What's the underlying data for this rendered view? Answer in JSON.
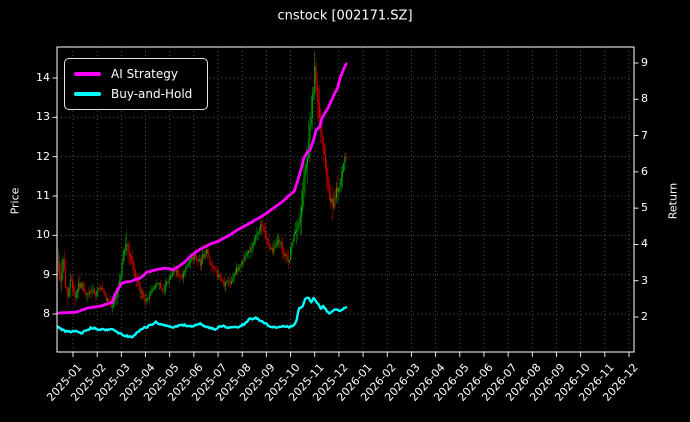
{
  "title": "cnstock [002171.SZ]",
  "legend": {
    "items": [
      {
        "label": "AI Strategy",
        "color": "#ff00ff"
      },
      {
        "label": "Buy-and-Hold",
        "color": "#00ffff"
      }
    ]
  },
  "axes": {
    "left": {
      "label": "Price",
      "ticks": [
        8,
        9,
        10,
        11,
        12,
        13,
        14
      ]
    },
    "right": {
      "label": "Return",
      "ticks": [
        2,
        3,
        4,
        5,
        6,
        7,
        8,
        9
      ]
    },
    "x": {
      "tick_labels": [
        "2025-01",
        "2025-02",
        "2025-03",
        "2025-04",
        "2025-05",
        "2025-06",
        "2025-07",
        "2025-08",
        "2025-09",
        "2025-10",
        "2025-11",
        "2025-12",
        "2026-01",
        "2026-02",
        "2026-03",
        "2026-04",
        "2026-05",
        "2026-06",
        "2026-07",
        "2026-08",
        "2026-09",
        "2026-10",
        "2026-11",
        "2026-12"
      ]
    }
  },
  "chart_data": {
    "type": "candlestick+line",
    "title": "cnstock [002171.SZ]",
    "ylabel_left": "Price",
    "ylabel_right": "Return",
    "grid": true,
    "legend_position": "upper-left",
    "background": "#000000",
    "text_color": "#ffffff",
    "grid_color": "rgba(255,255,255,0.38)",
    "up_color": "#00a800",
    "down_color": "#e00000",
    "price_ylim": [
      7.03,
      14.79
    ],
    "return_ylim": [
      1.03,
      9.44
    ],
    "months_shown": 24,
    "days_of_data": 240,
    "candles_seed": 42,
    "price_close_waypoints": [
      [
        0,
        9.3
      ],
      [
        2,
        8.8
      ],
      [
        4,
        9.45
      ],
      [
        6,
        8.7
      ],
      [
        8,
        8.55
      ],
      [
        11,
        8.9
      ],
      [
        14,
        8.45
      ],
      [
        17,
        8.75
      ],
      [
        20,
        8.7
      ],
      [
        23,
        8.45
      ],
      [
        25,
        8.5
      ],
      [
        28,
        8.6
      ],
      [
        31,
        8.45
      ],
      [
        34,
        8.7
      ],
      [
        37,
        8.6
      ],
      [
        40,
        8.3
      ],
      [
        42,
        8.35
      ],
      [
        44,
        8.2
      ],
      [
        46,
        8.25
      ],
      [
        48,
        8.5
      ],
      [
        50,
        8.7
      ],
      [
        52,
        9.0
      ],
      [
        54,
        9.5
      ],
      [
        56,
        9.85
      ],
      [
        58,
        9.6
      ],
      [
        60,
        9.45
      ],
      [
        62,
        9.15
      ],
      [
        64,
        8.95
      ],
      [
        66,
        8.75
      ],
      [
        68,
        8.6
      ],
      [
        71,
        8.45
      ],
      [
        73,
        8.3
      ],
      [
        75,
        8.45
      ],
      [
        78,
        8.6
      ],
      [
        81,
        8.75
      ],
      [
        83,
        8.8
      ],
      [
        86,
        8.6
      ],
      [
        88,
        8.65
      ],
      [
        91,
        8.85
      ],
      [
        93,
        8.95
      ],
      [
        96,
        9.05
      ],
      [
        98,
        9.1
      ],
      [
        100,
        9.0
      ],
      [
        103,
        8.9
      ],
      [
        105,
        9.1
      ],
      [
        108,
        9.25
      ],
      [
        111,
        9.4
      ],
      [
        113,
        9.5
      ],
      [
        116,
        9.4
      ],
      [
        118,
        9.3
      ],
      [
        120,
        9.45
      ],
      [
        123,
        9.6
      ],
      [
        126,
        9.35
      ],
      [
        128,
        9.2
      ],
      [
        131,
        9.05
      ],
      [
        133,
        8.95
      ],
      [
        136,
        8.8
      ],
      [
        138,
        8.75
      ],
      [
        141,
        8.85
      ],
      [
        143,
        8.8
      ],
      [
        146,
        9.0
      ],
      [
        148,
        9.1
      ],
      [
        151,
        9.25
      ],
      [
        153,
        9.35
      ],
      [
        156,
        9.5
      ],
      [
        158,
        9.6
      ],
      [
        161,
        9.75
      ],
      [
        163,
        9.9
      ],
      [
        166,
        10.1
      ],
      [
        168,
        10.25
      ],
      [
        171,
        10.05
      ],
      [
        173,
        9.9
      ],
      [
        176,
        9.7
      ],
      [
        178,
        9.6
      ],
      [
        181,
        9.75
      ],
      [
        183,
        9.9
      ],
      [
        186,
        9.65
      ],
      [
        188,
        9.5
      ],
      [
        191,
        9.3
      ],
      [
        194,
        9.8
      ],
      [
        196,
        9.95
      ],
      [
        198,
        10.1
      ],
      [
        200,
        10.35
      ],
      [
        202,
        10.8
      ],
      [
        204,
        11.4
      ],
      [
        206,
        11.8
      ],
      [
        208,
        12.4
      ],
      [
        210,
        13.1
      ],
      [
        212,
        13.7
      ],
      [
        213,
        14.1
      ],
      [
        215,
        13.6
      ],
      [
        216,
        13.3
      ],
      [
        218,
        12.6
      ],
      [
        220,
        12.3
      ],
      [
        221,
        12.1
      ],
      [
        223,
        11.6
      ],
      [
        225,
        11.1
      ],
      [
        226,
        10.9
      ],
      [
        228,
        10.75
      ],
      [
        230,
        10.9
      ],
      [
        231,
        11.1
      ],
      [
        233,
        11.3
      ],
      [
        235,
        11.45
      ],
      [
        236,
        11.6
      ],
      [
        238,
        11.9
      ],
      [
        239,
        11.95
      ]
    ],
    "volatility_waypoints": [
      [
        0,
        0.3
      ],
      [
        8,
        0.25
      ],
      [
        20,
        0.15
      ],
      [
        40,
        0.12
      ],
      [
        50,
        0.22
      ],
      [
        56,
        0.28
      ],
      [
        64,
        0.18
      ],
      [
        80,
        0.12
      ],
      [
        100,
        0.13
      ],
      [
        120,
        0.15
      ],
      [
        140,
        0.12
      ],
      [
        160,
        0.14
      ],
      [
        180,
        0.15
      ],
      [
        191,
        0.18
      ],
      [
        198,
        0.3
      ],
      [
        206,
        0.4
      ],
      [
        213,
        0.45
      ],
      [
        222,
        0.35
      ],
      [
        232,
        0.25
      ],
      [
        239,
        0.2
      ]
    ],
    "series": [
      {
        "name": "AI Strategy",
        "axis": "return",
        "color": "#ff00ff",
        "points": [
          [
            0,
            2.11
          ],
          [
            14,
            2.13
          ],
          [
            25,
            2.25
          ],
          [
            35,
            2.3
          ],
          [
            45,
            2.41
          ],
          [
            47,
            2.61
          ],
          [
            50,
            2.8
          ],
          [
            53,
            2.94
          ],
          [
            61,
            2.99
          ],
          [
            68,
            3.07
          ],
          [
            74,
            3.24
          ],
          [
            81,
            3.3
          ],
          [
            89,
            3.35
          ],
          [
            95,
            3.3
          ],
          [
            101,
            3.41
          ],
          [
            105,
            3.52
          ],
          [
            111,
            3.71
          ],
          [
            118,
            3.87
          ],
          [
            126,
            4.01
          ],
          [
            133,
            4.09
          ],
          [
            141,
            4.23
          ],
          [
            149,
            4.4
          ],
          [
            155,
            4.51
          ],
          [
            161,
            4.62
          ],
          [
            168,
            4.76
          ],
          [
            174,
            4.89
          ],
          [
            180,
            5.03
          ],
          [
            186,
            5.17
          ],
          [
            191,
            5.33
          ],
          [
            196,
            5.47
          ],
          [
            199,
            5.78
          ],
          [
            202,
            6.11
          ],
          [
            204,
            6.38
          ],
          [
            207,
            6.55
          ],
          [
            209,
            6.6
          ],
          [
            212,
            6.88
          ],
          [
            214,
            7.15
          ],
          [
            217,
            7.24
          ],
          [
            219,
            7.48
          ],
          [
            222,
            7.65
          ],
          [
            224,
            7.76
          ],
          [
            227,
            7.98
          ],
          [
            229,
            8.12
          ],
          [
            232,
            8.31
          ],
          [
            234,
            8.59
          ],
          [
            236,
            8.75
          ],
          [
            239,
            8.97
          ]
        ]
      },
      {
        "name": "Buy-and-Hold",
        "axis": "return",
        "color": "#00ffff",
        "points": [
          [
            0,
            1.72
          ],
          [
            3,
            1.64
          ],
          [
            8,
            1.59
          ],
          [
            14,
            1.61
          ],
          [
            20,
            1.56
          ],
          [
            27,
            1.7
          ],
          [
            32,
            1.67
          ],
          [
            39,
            1.64
          ],
          [
            45,
            1.67
          ],
          [
            50,
            1.56
          ],
          [
            56,
            1.48
          ],
          [
            61,
            1.45
          ],
          [
            68,
            1.64
          ],
          [
            75,
            1.75
          ],
          [
            81,
            1.86
          ],
          [
            86,
            1.78
          ],
          [
            93,
            1.72
          ],
          [
            100,
            1.75
          ],
          [
            105,
            1.78
          ],
          [
            111,
            1.72
          ],
          [
            118,
            1.81
          ],
          [
            124,
            1.72
          ],
          [
            130,
            1.67
          ],
          [
            136,
            1.75
          ],
          [
            143,
            1.7
          ],
          [
            149,
            1.72
          ],
          [
            155,
            1.81
          ],
          [
            159,
            1.94
          ],
          [
            164,
            1.97
          ],
          [
            169,
            1.89
          ],
          [
            174,
            1.78
          ],
          [
            180,
            1.7
          ],
          [
            186,
            1.75
          ],
          [
            191,
            1.72
          ],
          [
            195,
            1.75
          ],
          [
            198,
            1.92
          ],
          [
            200,
            2.25
          ],
          [
            203,
            2.3
          ],
          [
            205,
            2.5
          ],
          [
            208,
            2.55
          ],
          [
            210,
            2.39
          ],
          [
            212,
            2.55
          ],
          [
            215,
            2.39
          ],
          [
            218,
            2.22
          ],
          [
            220,
            2.3
          ],
          [
            223,
            2.17
          ],
          [
            225,
            2.08
          ],
          [
            228,
            2.17
          ],
          [
            231,
            2.22
          ],
          [
            234,
            2.17
          ],
          [
            236,
            2.22
          ],
          [
            239,
            2.28
          ]
        ]
      }
    ]
  }
}
